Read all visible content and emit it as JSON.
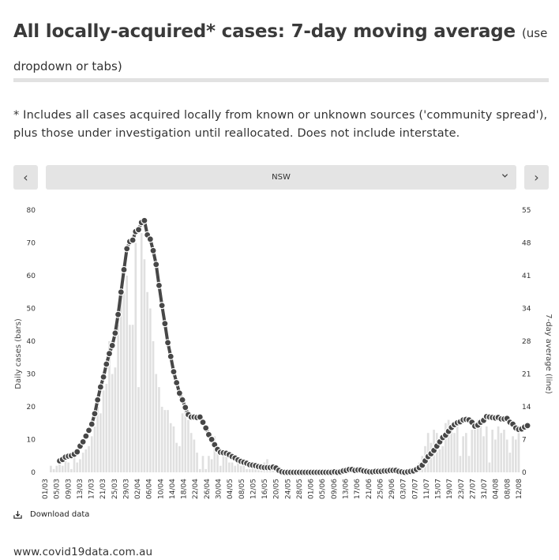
{
  "header": {
    "title": "All locally-acquired* cases: 7-day moving average",
    "subtitle": "(use dropdown or tabs)"
  },
  "note": "* Includes all cases acquired locally from known or unknown sources ('community spread'), plus those under investigation until reallocated. Does not include interstate.",
  "controls": {
    "prev_label": "‹",
    "next_label": "›",
    "selected_region": "NSW",
    "dropdown_icon": "chevron-down-icon"
  },
  "download_label": "Download data",
  "footer": "www.covid19data.com.au",
  "colors": {
    "bar": "#e0e0e0",
    "line": "#474747",
    "dot": "#474747",
    "dot_stroke": "#ffffff"
  },
  "chart_data": {
    "type": "bar+line",
    "ylabel_left": "Daily cases (bars)",
    "ylabel_right": "7-day average (line)",
    "ylim_left": [
      0,
      80
    ],
    "ylim_right": [
      0,
      55
    ],
    "yticks_left": [
      "0",
      "10",
      "20",
      "30",
      "40",
      "50",
      "60",
      "70",
      "80"
    ],
    "yticks_right": [
      "0",
      "7",
      "14",
      "21",
      "28",
      "34",
      "41",
      "48",
      "55"
    ],
    "x_tick_labels": [
      "01/03",
      "05/03",
      "09/03",
      "13/03",
      "17/03",
      "21/03",
      "25/03",
      "29/03",
      "02/04",
      "06/04",
      "10/04",
      "14/04",
      "18/04",
      "22/04",
      "26/04",
      "30/04",
      "04/05",
      "08/05",
      "12/05",
      "16/05",
      "20/05",
      "24/05",
      "28/05",
      "01/06",
      "05/06",
      "09/06",
      "13/06",
      "17/06",
      "21/06",
      "25/06",
      "29/06",
      "03/07",
      "07/07",
      "11/07",
      "15/07",
      "19/07",
      "23/07",
      "27/07",
      "31/07",
      "04/08",
      "08/08",
      "12/08"
    ],
    "start_date": "2020-03-01",
    "daily_cases": [
      0,
      0,
      2,
      1,
      2,
      3,
      2,
      4,
      3,
      1,
      5,
      3,
      4,
      6,
      7,
      8,
      11,
      14,
      20,
      18,
      25,
      27,
      40,
      30,
      32,
      45,
      56,
      55,
      60,
      45,
      45,
      70,
      26,
      73,
      65,
      55,
      50,
      40,
      30,
      26,
      20,
      19,
      19,
      15,
      14,
      9,
      8,
      18,
      19,
      16,
      12,
      10,
      6,
      1,
      5,
      1,
      5,
      4,
      11,
      6,
      2,
      5,
      6,
      3,
      3,
      2,
      3,
      2,
      2,
      1,
      1,
      2,
      2,
      1,
      2,
      3,
      4,
      2,
      1,
      1,
      0,
      1,
      1,
      0,
      0,
      0,
      0,
      0,
      0,
      0,
      0,
      0,
      0,
      0,
      0,
      0,
      0,
      0,
      0,
      1,
      0,
      1,
      1,
      0,
      0,
      0,
      1,
      1,
      1,
      0,
      0,
      0,
      1,
      0,
      1,
      0,
      1,
      0,
      1,
      0,
      1,
      0,
      0,
      0,
      0,
      1,
      1,
      2,
      3,
      5,
      8,
      12,
      9,
      13,
      12,
      7,
      8,
      15,
      16,
      14,
      12,
      14,
      5,
      11,
      12,
      5,
      13,
      14,
      16,
      16,
      11,
      14,
      3,
      13,
      10,
      14,
      12,
      13,
      10,
      6,
      11,
      10,
      12
    ],
    "seven_day_avg": [
      null,
      null,
      null,
      null,
      null,
      2.4,
      2.7,
      3.2,
      3.4,
      3.5,
      3.8,
      4.3,
      5.5,
      6.4,
      7.6,
      8.8,
      10.1,
      12.3,
      15.2,
      17.9,
      20.0,
      22.7,
      24.9,
      26.6,
      29.2,
      33.1,
      37.8,
      42.5,
      46.9,
      48.4,
      48.7,
      50.5,
      50.9,
      52.4,
      52.8,
      49.8,
      48.9,
      46.5,
      43.6,
      39.2,
      35.0,
      31.2,
      27.2,
      24.3,
      21.1,
      18.8,
      16.6,
      15.2,
      13.6,
      12.1,
      11.6,
      11.6,
      11.5,
      11.6,
      10.5,
      9.3,
      7.9,
      6.9,
      5.8,
      4.8,
      4.2,
      4.1,
      4.0,
      3.7,
      3.3,
      3.0,
      2.6,
      2.3,
      2.1,
      1.9,
      1.6,
      1.5,
      1.4,
      1.2,
      1.1,
      1.0,
      1.0,
      1.0,
      1.1,
      0.9,
      0.4,
      0.1,
      0.0,
      0.0,
      0.0,
      0.0,
      0.0,
      0.0,
      0.0,
      0.0,
      0.0,
      0.0,
      0.0,
      0.0,
      0.0,
      0.0,
      0.0,
      0.0,
      0.0,
      0.1,
      0.0,
      0.1,
      0.3,
      0.4,
      0.6,
      0.6,
      0.4,
      0.5,
      0.5,
      0.3,
      0.2,
      0.1,
      0.1,
      0.2,
      0.2,
      0.2,
      0.3,
      0.3,
      0.4,
      0.4,
      0.4,
      0.2,
      0.1,
      0.0,
      0.1,
      0.2,
      0.3,
      0.6,
      1.0,
      1.5,
      2.4,
      3.3,
      3.9,
      4.6,
      5.5,
      6.4,
      7.3,
      7.8,
      8.6,
      9.4,
      10.0,
      10.4,
      10.6,
      11.0,
      11.1,
      11.0,
      10.5,
      9.7,
      9.9,
      10.5,
      10.9,
      11.7,
      11.6,
      11.5,
      11.4,
      11.5,
      11.2,
      11.2,
      11.3,
      10.5,
      10.1,
      9.3,
      9.0,
      9.1,
      9.5,
      9.8
    ]
  }
}
